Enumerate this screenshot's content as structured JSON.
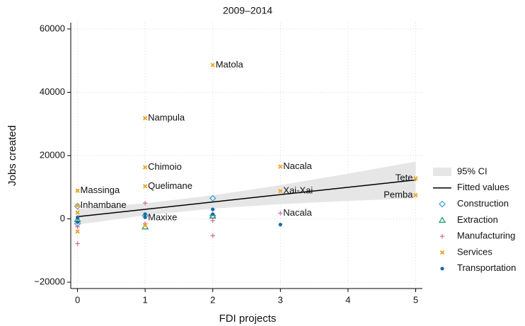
{
  "chart_data": {
    "type": "scatter",
    "title": "2009–2014",
    "x_label": "FDI projects",
    "y_label": "Jobs created",
    "xlim": [
      -0.1,
      5.1
    ],
    "ylim": [
      -22000,
      62000
    ],
    "xticks": [
      0,
      1,
      2,
      3,
      4,
      5
    ],
    "yticks": [
      {
        "value": -20000,
        "label": "−20000"
      },
      0,
      20000,
      40000,
      60000
    ],
    "grid": true,
    "legend": "right",
    "series": [
      {
        "name": "95% CI",
        "kind": "band",
        "color": "#e6e6e6",
        "x": [
          0,
          1,
          2,
          3,
          4,
          5
        ],
        "lower": [
          -1800,
          1120,
          3240,
          4660,
          5680,
          6500
        ],
        "upper": [
          3200,
          4920,
          7440,
          10660,
          14280,
          18100
        ]
      },
      {
        "name": "Fitted values",
        "kind": "line",
        "color": "#000000",
        "x": [
          0,
          5
        ],
        "values": [
          700,
          12300
        ]
      },
      {
        "name": "Construction",
        "kind": "points",
        "marker": "diamond",
        "color": "#3c9ed6",
        "x": [
          0,
          0,
          1,
          2,
          2
        ],
        "values": [
          4000,
          -1500,
          1000,
          6500,
          1000
        ]
      },
      {
        "name": "Extraction",
        "kind": "points",
        "marker": "triangle",
        "color": "#1f9a60",
        "x": [
          0,
          1,
          2
        ],
        "values": [
          -200,
          -2500,
          900
        ]
      },
      {
        "name": "Manufacturing",
        "kind": "points",
        "marker": "plus",
        "color": "#d9639b",
        "x": [
          0,
          0,
          1,
          1,
          2,
          2,
          3
        ],
        "values": [
          -7800,
          -2500,
          5000,
          -1500,
          -5300,
          -500,
          1800
        ]
      },
      {
        "name": "Services",
        "kind": "points",
        "marker": "cross",
        "color": "#f0a21e",
        "x": [
          0,
          0,
          0,
          0,
          1,
          1,
          1,
          1,
          2,
          3,
          3,
          5,
          5
        ],
        "values": [
          8900,
          4200,
          -4000,
          2000,
          31800,
          16300,
          10300,
          -2000,
          48600,
          16500,
          8800,
          12800,
          7500
        ]
      },
      {
        "name": "Transportation",
        "kind": "points",
        "marker": "circle",
        "color": "#1d6aa5",
        "x": [
          0,
          0,
          0,
          1,
          1,
          2,
          2,
          3
        ],
        "values": [
          300,
          -1000,
          500,
          1500,
          500,
          3000,
          1500,
          -1800
        ]
      }
    ],
    "annotations": [
      {
        "text": "Massinga",
        "x": 0,
        "y": 8900
      },
      {
        "text": "Inhambane",
        "x": 0,
        "y": 4200
      },
      {
        "text": "Nampula",
        "x": 1,
        "y": 31800
      },
      {
        "text": "Chimoio",
        "x": 1,
        "y": 16300
      },
      {
        "text": "Quelimane",
        "x": 1,
        "y": 10300
      },
      {
        "text": "Maxixe",
        "x": 1,
        "y": 300
      },
      {
        "text": "Matola",
        "x": 2,
        "y": 48600
      },
      {
        "text": "Nacala",
        "x": 3,
        "y": 16500
      },
      {
        "text": "Xai-Xai",
        "x": 3,
        "y": 8800
      },
      {
        "text": "Nacala",
        "x": 3,
        "y": 1800
      },
      {
        "text": "Tete",
        "x": 5,
        "y": 12800
      },
      {
        "text": "Pemba",
        "x": 5,
        "y": 7500
      }
    ]
  }
}
